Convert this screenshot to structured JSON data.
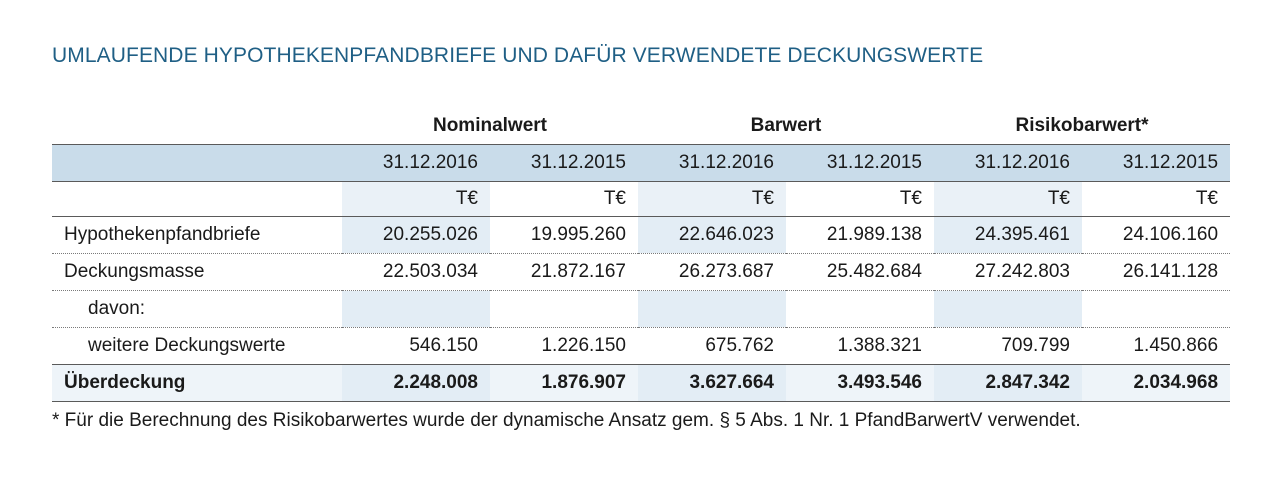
{
  "title": "UMLAUFENDE HYPOTHEKENPFANDBRIEFE UND DAFÜR VERWENDETE DECKUNGSWERTE",
  "groups": [
    "Nominalwert",
    "Barwert",
    "Risikobarwert*"
  ],
  "dates": [
    "31.12.2016",
    "31.12.2015",
    "31.12.2016",
    "31.12.2015",
    "31.12.2016",
    "31.12.2015"
  ],
  "unit": "T€",
  "rows": [
    {
      "label": "Hypothekenpfandbriefe",
      "values": [
        "20.255.026",
        "19.995.260",
        "22.646.023",
        "21.989.138",
        "24.395.461",
        "24.106.160"
      ]
    },
    {
      "label": "Deckungsmasse",
      "values": [
        "22.503.034",
        "21.872.167",
        "26.273.687",
        "25.482.684",
        "27.242.803",
        "26.141.128"
      ]
    },
    {
      "label": "davon:",
      "values": [
        "",
        "",
        "",
        "",
        "",
        ""
      ]
    },
    {
      "label": "weitere Deckungswerte",
      "values": [
        "546.150",
        "1.226.150",
        "675.762",
        "1.388.321",
        "709.799",
        "1.450.866"
      ]
    },
    {
      "label": "Überdeckung",
      "values": [
        "2.248.008",
        "1.876.907",
        "3.627.664",
        "3.493.546",
        "2.847.342",
        "2.034.968"
      ]
    }
  ],
  "footnote": "* Für die Berechnung des Risikobarwertes wurde der dynamische Ansatz gem. § 5 Abs. 1 Nr. 1 PfandBarwertV verwendet."
}
